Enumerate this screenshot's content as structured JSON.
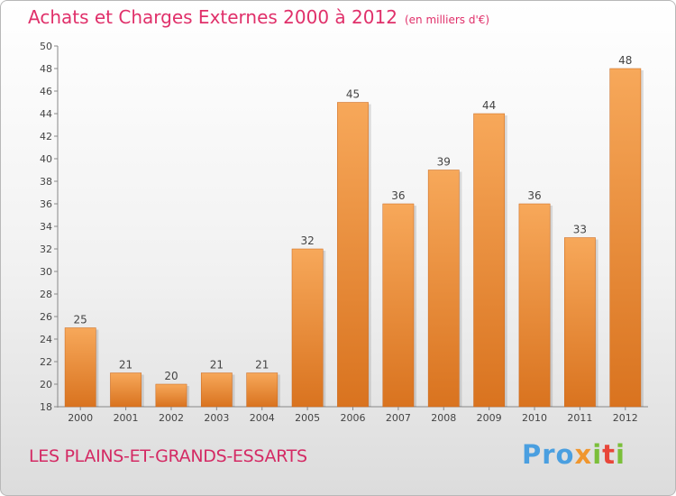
{
  "title": "Achats et Charges Externes 2000 à 2012",
  "unit": "(en milliers d'€)",
  "place": "LES PLAINS-ET-GRANDS-ESSARTS",
  "logo": {
    "p1": "Pro",
    "p2": "x",
    "p3": "i",
    "p4": "t",
    "p5": "i"
  },
  "colors": {
    "bar_light": "#f7a85a",
    "bar_dark": "#d9731f",
    "title": "#e0306a"
  },
  "chart_data": {
    "type": "bar",
    "categories": [
      "2000",
      "2001",
      "2002",
      "2003",
      "2004",
      "2005",
      "2006",
      "2007",
      "2008",
      "2009",
      "2010",
      "2011",
      "2012"
    ],
    "values": [
      25,
      21,
      20,
      21,
      21,
      32,
      45,
      36,
      39,
      44,
      36,
      33,
      48
    ],
    "ylim": [
      18,
      50
    ],
    "yticks": [
      18,
      20,
      22,
      24,
      26,
      28,
      30,
      32,
      34,
      36,
      38,
      40,
      42,
      44,
      46,
      48,
      50
    ],
    "grid": false
  }
}
